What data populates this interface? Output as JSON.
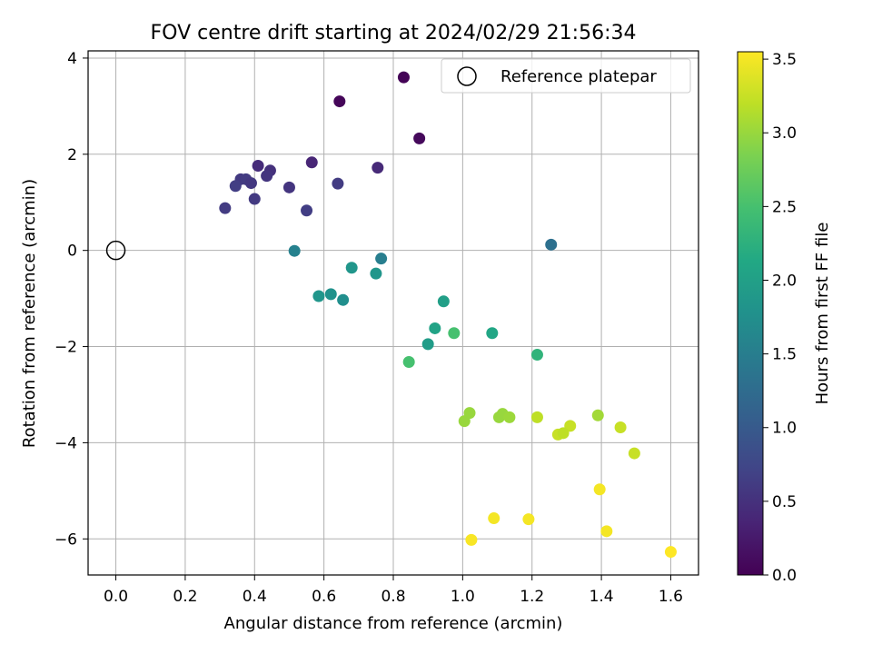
{
  "chart_data": {
    "type": "scatter",
    "title": "FOV centre drift starting at 2024/02/29 21:56:34",
    "xlabel": "Angular distance from reference (arcmin)",
    "ylabel": "Rotation from reference (arcmin)",
    "xlim": [
      -0.08,
      1.68
    ],
    "ylim": [
      -6.75,
      4.15
    ],
    "xticks": [
      0.0,
      0.2,
      0.4,
      0.6,
      0.8,
      1.0,
      1.2,
      1.4,
      1.6
    ],
    "xtick_labels": [
      "0.0",
      "0.2",
      "0.4",
      "0.6",
      "0.8",
      "1.0",
      "1.2",
      "1.4",
      "1.6"
    ],
    "yticks": [
      4,
      2,
      0,
      -2,
      -4,
      -6
    ],
    "ytick_labels": [
      "4",
      "2",
      "0",
      "−2",
      "−4",
      "−6"
    ],
    "grid": true,
    "legend": {
      "placement": "top-right",
      "label": "Reference platepar"
    },
    "reference_point": {
      "x": 0.0,
      "y": 0.0
    },
    "colorbar": {
      "label": "Hours from first FF file",
      "range": [
        0.0,
        3.55
      ],
      "ticks": [
        0.0,
        0.5,
        1.0,
        1.5,
        2.0,
        2.5,
        3.0,
        3.5
      ],
      "tick_labels": [
        "0.0",
        "0.5",
        "1.0",
        "1.5",
        "2.0",
        "2.5",
        "3.0",
        "3.5"
      ],
      "colormap": "viridis"
    },
    "points": [
      {
        "x": 0.83,
        "y": 3.6,
        "c": 0.02
      },
      {
        "x": 0.645,
        "y": 3.1,
        "c": 0.05
      },
      {
        "x": 0.875,
        "y": 2.33,
        "c": 0.08
      },
      {
        "x": 0.565,
        "y": 1.83,
        "c": 0.38
      },
      {
        "x": 0.755,
        "y": 1.72,
        "c": 0.42
      },
      {
        "x": 0.41,
        "y": 1.76,
        "c": 0.45
      },
      {
        "x": 0.445,
        "y": 1.66,
        "c": 0.5
      },
      {
        "x": 0.435,
        "y": 1.55,
        "c": 0.55
      },
      {
        "x": 0.36,
        "y": 1.48,
        "c": 0.6
      },
      {
        "x": 0.375,
        "y": 1.48,
        "c": 0.62
      },
      {
        "x": 0.39,
        "y": 1.4,
        "c": 0.58
      },
      {
        "x": 0.345,
        "y": 1.34,
        "c": 0.65
      },
      {
        "x": 0.64,
        "y": 1.39,
        "c": 0.62
      },
      {
        "x": 0.5,
        "y": 1.31,
        "c": 0.55
      },
      {
        "x": 0.4,
        "y": 1.07,
        "c": 0.6
      },
      {
        "x": 0.315,
        "y": 0.88,
        "c": 0.62
      },
      {
        "x": 0.55,
        "y": 0.83,
        "c": 0.65
      },
      {
        "x": 1.255,
        "y": 0.12,
        "c": 1.3
      },
      {
        "x": 0.515,
        "y": -0.01,
        "c": 1.55
      },
      {
        "x": 0.765,
        "y": -0.17,
        "c": 1.5
      },
      {
        "x": 0.68,
        "y": -0.36,
        "c": 1.85
      },
      {
        "x": 0.75,
        "y": -0.48,
        "c": 1.85
      },
      {
        "x": 0.585,
        "y": -0.95,
        "c": 1.85
      },
      {
        "x": 0.62,
        "y": -0.91,
        "c": 1.8
      },
      {
        "x": 0.655,
        "y": -1.03,
        "c": 1.75
      },
      {
        "x": 0.945,
        "y": -1.06,
        "c": 2.0
      },
      {
        "x": 0.92,
        "y": -1.62,
        "c": 2.05
      },
      {
        "x": 0.9,
        "y": -1.95,
        "c": 1.95
      },
      {
        "x": 0.975,
        "y": -1.72,
        "c": 2.5
      },
      {
        "x": 1.085,
        "y": -1.72,
        "c": 2.1
      },
      {
        "x": 1.215,
        "y": -2.17,
        "c": 2.3
      },
      {
        "x": 0.845,
        "y": -2.32,
        "c": 2.5
      },
      {
        "x": 1.02,
        "y": -3.38,
        "c": 3.0
      },
      {
        "x": 1.005,
        "y": -3.55,
        "c": 3.0
      },
      {
        "x": 1.105,
        "y": -3.47,
        "c": 3.0
      },
      {
        "x": 1.115,
        "y": -3.4,
        "c": 3.0
      },
      {
        "x": 1.135,
        "y": -3.47,
        "c": 3.02
      },
      {
        "x": 1.215,
        "y": -3.47,
        "c": 3.2
      },
      {
        "x": 1.39,
        "y": -3.43,
        "c": 3.05
      },
      {
        "x": 1.31,
        "y": -3.65,
        "c": 3.25
      },
      {
        "x": 1.275,
        "y": -3.83,
        "c": 3.25
      },
      {
        "x": 1.29,
        "y": -3.8,
        "c": 3.2
      },
      {
        "x": 1.455,
        "y": -3.68,
        "c": 3.25
      },
      {
        "x": 1.495,
        "y": -4.22,
        "c": 3.25
      },
      {
        "x": 1.395,
        "y": -4.97,
        "c": 3.5
      },
      {
        "x": 1.09,
        "y": -5.57,
        "c": 3.5
      },
      {
        "x": 1.19,
        "y": -5.59,
        "c": 3.5
      },
      {
        "x": 1.415,
        "y": -5.84,
        "c": 3.5
      },
      {
        "x": 1.025,
        "y": -6.02,
        "c": 3.52
      },
      {
        "x": 1.6,
        "y": -6.27,
        "c": 3.55
      }
    ]
  }
}
